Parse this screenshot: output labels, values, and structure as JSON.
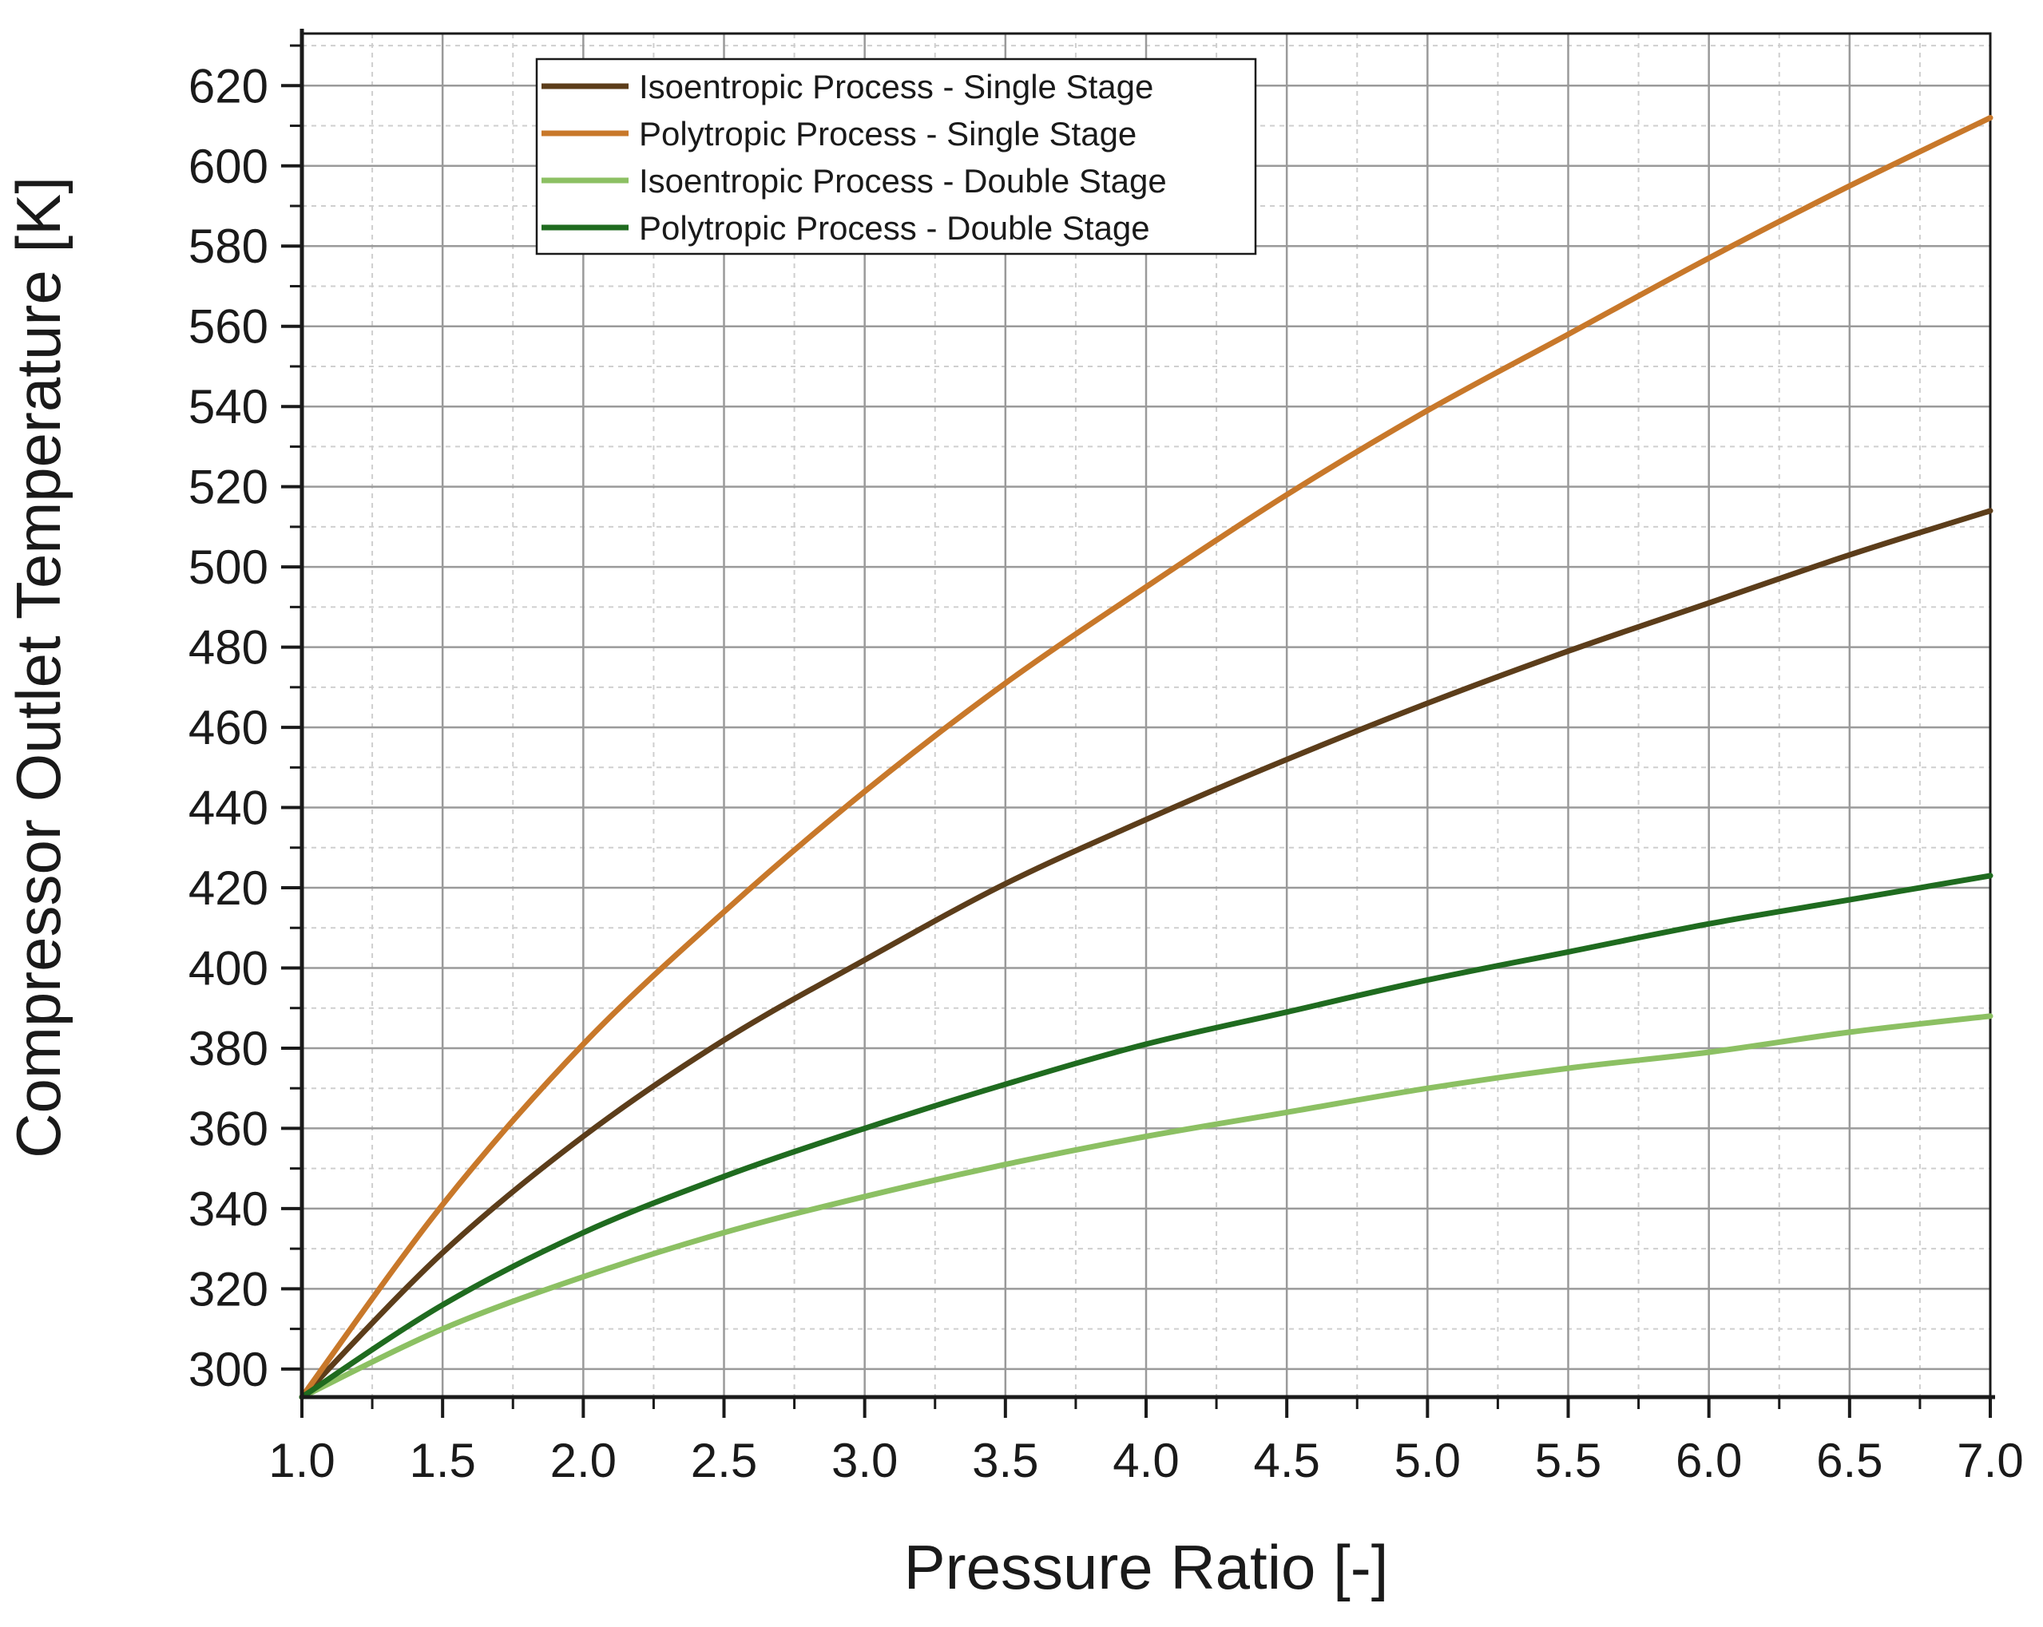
{
  "chart_data": {
    "type": "line",
    "title": "",
    "xlabel": "Pressure Ratio [-]",
    "ylabel": "Compressor Outlet Temperature [K]",
    "xlim": [
      1.0,
      7.0
    ],
    "ylim": [
      293,
      633
    ],
    "x_major_ticks": [
      1.0,
      1.5,
      2.0,
      2.5,
      3.0,
      3.5,
      4.0,
      4.5,
      5.0,
      5.5,
      6.0,
      6.5,
      7.0
    ],
    "x_tick_labels": [
      "1.0",
      "1.5",
      "2.0",
      "2.5",
      "3.0",
      "3.5",
      "4.0",
      "4.5",
      "5.0",
      "5.5",
      "6.0",
      "6.5",
      "7.0"
    ],
    "y_major_ticks": [
      300,
      320,
      340,
      360,
      380,
      400,
      420,
      440,
      460,
      480,
      500,
      520,
      540,
      560,
      580,
      600,
      620
    ],
    "y_tick_labels": [
      "300",
      "320",
      "340",
      "360",
      "380",
      "400",
      "420",
      "440",
      "460",
      "480",
      "500",
      "520",
      "540",
      "560",
      "580",
      "600",
      "620"
    ],
    "grid": true,
    "legend_position": "top-left",
    "x": [
      1.0,
      1.5,
      2.0,
      2.5,
      3.0,
      3.5,
      4.0,
      4.5,
      5.0,
      5.5,
      6.0,
      6.5,
      7.0
    ],
    "series": [
      {
        "name": "Isoentropic Process - Single Stage",
        "color": "#5c3d1a",
        "values": [
          293,
          329,
          358,
          382,
          402,
          421,
          437,
          452,
          466,
          479,
          491,
          503,
          514
        ]
      },
      {
        "name": "Polytropic Process - Single Stage",
        "color": "#c8782a",
        "values": [
          293,
          341,
          381,
          414,
          444,
          471,
          495,
          518,
          539,
          558,
          577,
          595,
          612
        ]
      },
      {
        "name": "Isoentropic Process - Double Stage",
        "color": "#8cc063",
        "values": [
          293,
          310,
          323,
          334,
          343,
          351,
          358,
          364,
          370,
          375,
          379,
          384,
          388
        ]
      },
      {
        "name": "Polytropic Process - Double Stage",
        "color": "#1f6b1f",
        "values": [
          293,
          316,
          334,
          348,
          360,
          371,
          381,
          389,
          397,
          404,
          411,
          417,
          423
        ]
      }
    ]
  }
}
